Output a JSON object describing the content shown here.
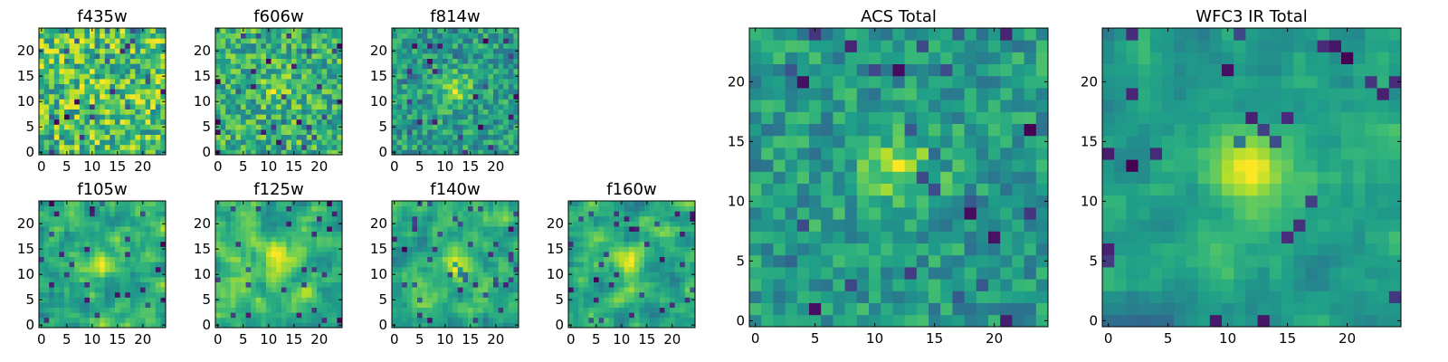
{
  "figure": {
    "colormap": "viridis",
    "colormap_stops": [
      "#440154",
      "#482878",
      "#3e4989",
      "#31688e",
      "#26828e",
      "#1f9e89",
      "#35b779",
      "#6ece58",
      "#b5de2b",
      "#fde725"
    ],
    "background": "#ffffff"
  },
  "chart_data": [
    {
      "id": "f435w",
      "type": "heatmap",
      "title": "f435w",
      "grid_size": [
        25,
        25
      ],
      "xticks": [
        0,
        5,
        10,
        15,
        20
      ],
      "yticks": [
        0,
        5,
        10,
        15,
        20
      ],
      "xlim": [
        -0.5,
        24.5
      ],
      "ylim": [
        -0.5,
        24.5
      ],
      "values": [],
      "grid": false
    },
    {
      "id": "f606w",
      "type": "heatmap",
      "title": "f606w",
      "grid_size": [
        25,
        25
      ],
      "xticks": [
        0,
        5,
        10,
        15,
        20
      ],
      "yticks": [
        0,
        5,
        10,
        15,
        20
      ],
      "xlim": [
        -0.5,
        24.5
      ],
      "ylim": [
        -0.5,
        24.5
      ],
      "values": [],
      "grid": false
    },
    {
      "id": "f814w",
      "type": "heatmap",
      "title": "f814w",
      "grid_size": [
        25,
        25
      ],
      "xticks": [
        0,
        5,
        10,
        15,
        20
      ],
      "yticks": [
        0,
        5,
        10,
        15,
        20
      ],
      "xlim": [
        -0.5,
        24.5
      ],
      "ylim": [
        -0.5,
        24.5
      ],
      "values": [],
      "grid": false
    },
    {
      "id": "f105w",
      "type": "heatmap",
      "title": "f105w",
      "grid_size": [
        25,
        25
      ],
      "xticks": [
        0,
        5,
        10,
        15,
        20
      ],
      "yticks": [
        0,
        5,
        10,
        15,
        20
      ],
      "xlim": [
        -0.5,
        24.5
      ],
      "ylim": [
        -0.5,
        24.5
      ],
      "values": [],
      "grid": false
    },
    {
      "id": "f125w",
      "type": "heatmap",
      "title": "f125w",
      "grid_size": [
        25,
        25
      ],
      "xticks": [
        0,
        5,
        10,
        15,
        20
      ],
      "yticks": [
        0,
        5,
        10,
        15,
        20
      ],
      "xlim": [
        -0.5,
        24.5
      ],
      "ylim": [
        -0.5,
        24.5
      ],
      "values": [],
      "grid": false
    },
    {
      "id": "f140w",
      "type": "heatmap",
      "title": "f140w",
      "grid_size": [
        25,
        25
      ],
      "xticks": [
        0,
        5,
        10,
        15,
        20
      ],
      "yticks": [
        0,
        5,
        10,
        15,
        20
      ],
      "xlim": [
        -0.5,
        24.5
      ],
      "ylim": [
        -0.5,
        24.5
      ],
      "values": [],
      "grid": false
    },
    {
      "id": "f160w",
      "type": "heatmap",
      "title": "f160w",
      "grid_size": [
        25,
        25
      ],
      "xticks": [
        0,
        5,
        10,
        15,
        20
      ],
      "yticks": [
        0,
        5,
        10,
        15,
        20
      ],
      "xlim": [
        -0.5,
        24.5
      ],
      "ylim": [
        -0.5,
        24.5
      ],
      "values": [],
      "grid": false
    },
    {
      "id": "acs-total",
      "type": "heatmap",
      "title": "ACS Total",
      "grid_size": [
        25,
        25
      ],
      "xticks": [
        0,
        5,
        10,
        15,
        20
      ],
      "yticks": [
        0,
        5,
        10,
        15,
        20
      ],
      "xlim": [
        -0.5,
        24.5
      ],
      "ylim": [
        -0.5,
        24.5
      ],
      "values": [],
      "grid": false
    },
    {
      "id": "wfc3-ir-total",
      "type": "heatmap",
      "title": "WFC3 IR Total",
      "grid_size": [
        25,
        25
      ],
      "xticks": [
        0,
        5,
        10,
        15,
        20
      ],
      "yticks": [
        0,
        5,
        10,
        15,
        20
      ],
      "xlim": [
        -0.5,
        24.5
      ],
      "ylim": [
        -0.5,
        24.5
      ],
      "values": [],
      "grid": false
    }
  ]
}
